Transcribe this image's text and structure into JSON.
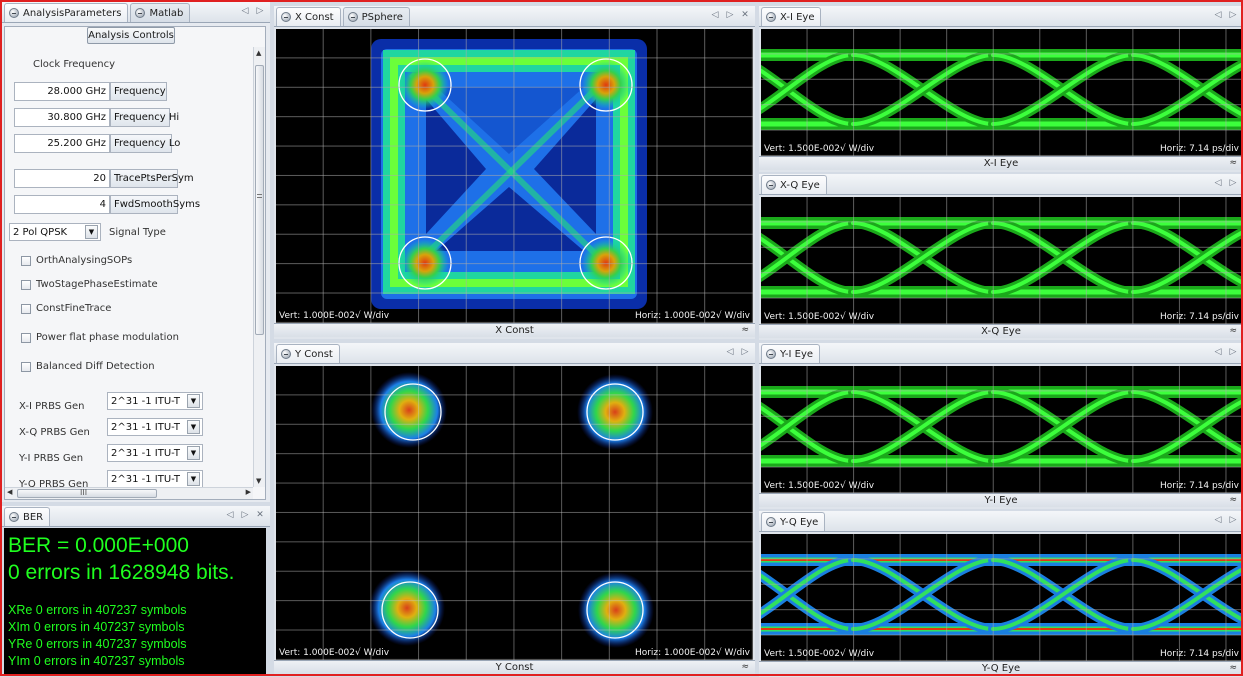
{
  "left_tabs": {
    "tab1": "AnalysisParameters",
    "tab2": "Matlab"
  },
  "params": {
    "header": "Analysis Controls",
    "clock_label": "Clock Frequency",
    "frequency": {
      "value": "28.000 GHz",
      "label": "Frequency"
    },
    "frequency_hi": {
      "value": "30.800 GHz",
      "label": "Frequency Hi"
    },
    "frequency_lo": {
      "value": "25.200 GHz",
      "label": "Frequency Lo"
    },
    "trace_pts": {
      "value": "20",
      "label": "TracePtsPerSym"
    },
    "fwd_smooth": {
      "value": "4",
      "label": "FwdSmoothSyms"
    },
    "signal_type": {
      "value": "2 Pol QPSK",
      "label": "Signal Type"
    },
    "checks": [
      "OrthAnalysingSOPs",
      "TwoStagePhaseEstimate",
      "ConstFineTrace",
      "Power flat phase modulation",
      "Balanced Diff Detection"
    ],
    "prbs": [
      {
        "label": "X-I PRBS Gen",
        "value": "2^31 -1 ITU-T"
      },
      {
        "label": "X-Q PRBS Gen",
        "value": "2^31 -1 ITU-T"
      },
      {
        "label": "Y-I PRBS Gen",
        "value": "2^31 -1 ITU-T"
      },
      {
        "label": "Y-Q PRBS Gen",
        "value": "2^31 -1 ITU-T"
      }
    ],
    "hscroll_glyph": "III"
  },
  "ber": {
    "tab": "BER",
    "headline": "BER = 0.000E+000",
    "errors_line": "0 errors in 1628948 bits.",
    "symbol_lines": [
      "XRe 0 errors in 407237 symbols",
      "XIm 0 errors in 407237 symbols",
      "YRe 0 errors in 407237 symbols",
      "YIm 0 errors in 407237 symbols"
    ]
  },
  "x_const": {
    "tab1": "X Const",
    "tab2": "PSphere",
    "vert": "Vert: 1.000E-002√ W/div",
    "horiz": "Horiz: 1.000E-002√ W/div",
    "footer": "X Const"
  },
  "y_const": {
    "tab": "Y Const",
    "vert": "Vert: 1.000E-002√ W/div",
    "horiz": "Horiz: 1.000E-002√ W/div",
    "footer": "Y Const"
  },
  "eyes": [
    {
      "tab": "X-I Eye",
      "vert": "Vert: 1.500E-002√ W/div",
      "horiz": "Horiz: 7.14 ps/div",
      "footer": "X-I Eye"
    },
    {
      "tab": "X-Q Eye",
      "vert": "Vert: 1.500E-002√ W/div",
      "horiz": "Horiz: 7.14 ps/div",
      "footer": "X-Q Eye"
    },
    {
      "tab": "Y-I Eye",
      "vert": "Vert: 1.500E-002√ W/div",
      "horiz": "Horiz: 7.14 ps/div",
      "footer": "Y-I Eye"
    },
    {
      "tab": "Y-Q Eye",
      "vert": "Vert: 1.500E-002√ W/div",
      "horiz": "Horiz: 7.14 ps/div",
      "footer": "Y-Q Eye"
    }
  ],
  "colors": {
    "window_border": "#e02020",
    "plot_bg": "#000000",
    "trace_green": "#22ff22",
    "ber_text": "#1fff1f"
  }
}
